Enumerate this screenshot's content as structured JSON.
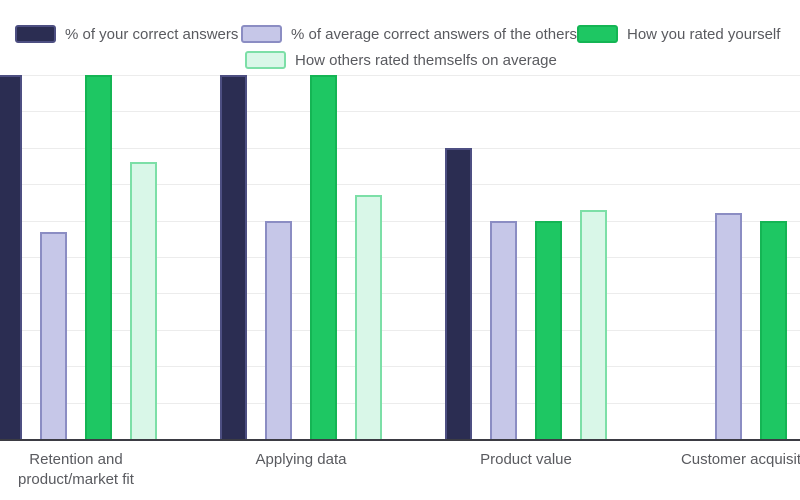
{
  "chart_data": {
    "type": "bar",
    "title": "",
    "xlabel": "",
    "ylabel": "",
    "ylim": [
      0,
      100
    ],
    "grid": {
      "show": true,
      "step": 10
    },
    "legend_position": "top",
    "categories": [
      "Retention and product/market fit",
      "Applying data",
      "Product value",
      "Customer acquisition"
    ],
    "categories_display": [
      "Retention and\nproduct/market fit",
      "Applying data",
      "Product value",
      "Customer acquisition"
    ],
    "series": [
      {
        "name": "% of your correct answers",
        "color": "#2b2d52",
        "border_color": "#4d4f82",
        "values": [
          100,
          100,
          80,
          0
        ]
      },
      {
        "name": "% of average correct answers of the others",
        "color": "#c6c7e8",
        "border_color": "#8b8dc3",
        "values": [
          57,
          60,
          60,
          62
        ]
      },
      {
        "name": "How you rated yourself",
        "color": "#1ec763",
        "border_color": "#14b554",
        "values": [
          100,
          100,
          60,
          60
        ]
      },
      {
        "name": "How others rated themselfs on average",
        "color": "#d9f7e8",
        "border_color": "#7cdfa7",
        "values": [
          76,
          67,
          63,
          null
        ]
      }
    ]
  }
}
